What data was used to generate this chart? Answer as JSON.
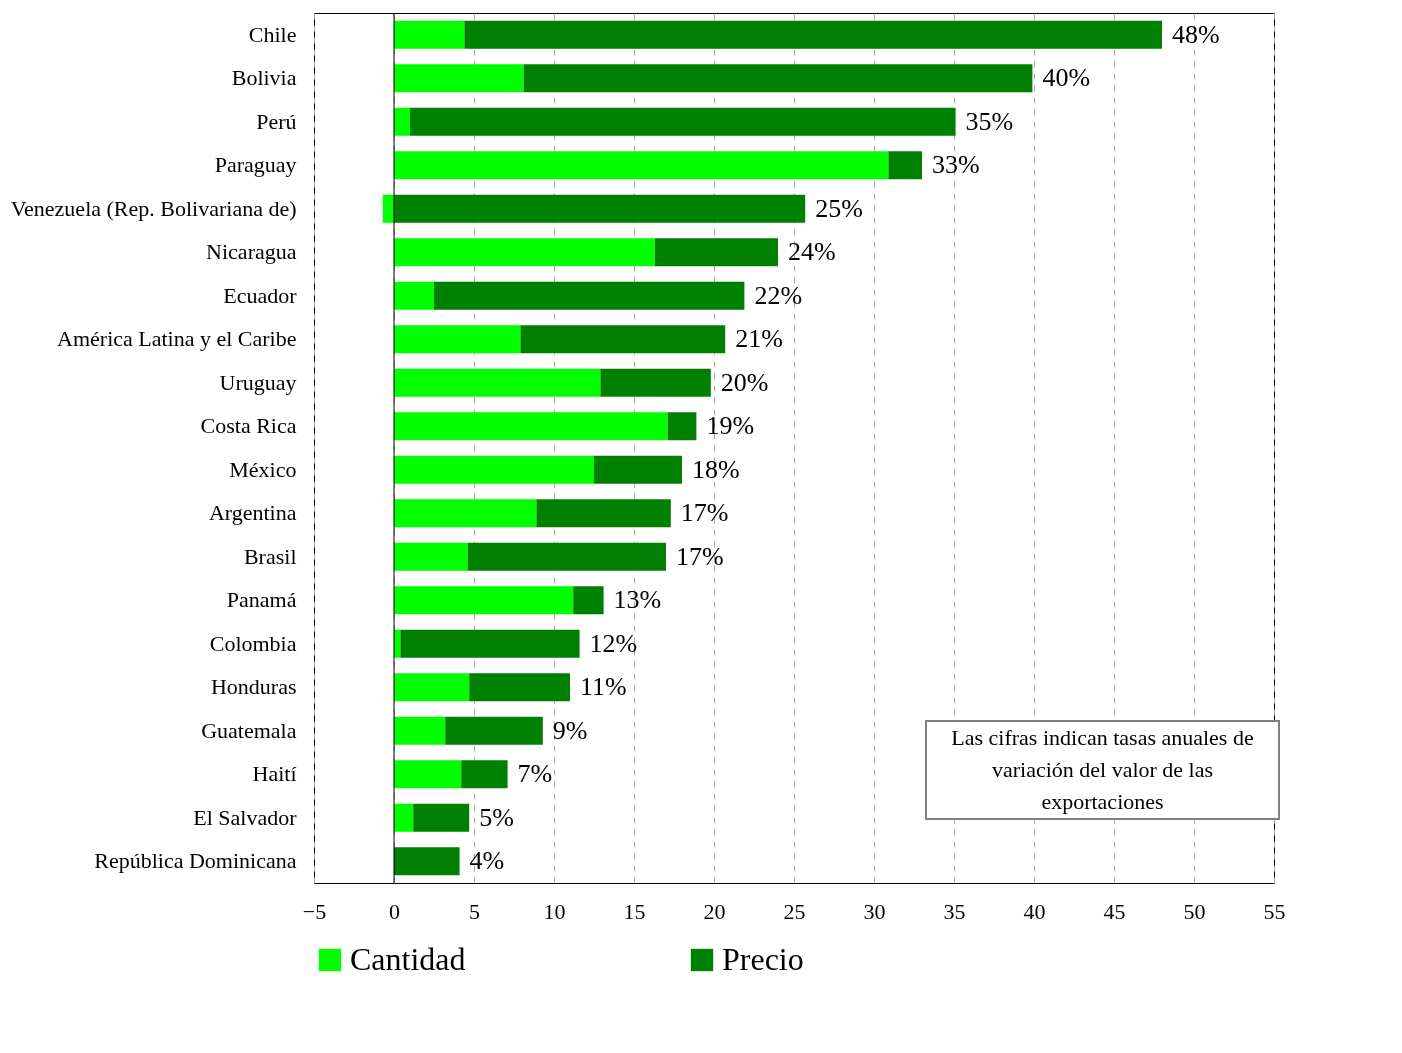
{
  "chart_data": {
    "type": "bar",
    "orientation": "horizontal",
    "stacked": true,
    "categories": [
      "Chile",
      "Bolivia",
      "Perú",
      "Paraguay",
      "Venezuela (Rep. Bolivariana de)",
      "Nicaragua",
      "Ecuador",
      "América Latina y el Caribe",
      "Uruguay",
      "Costa Rica",
      "México",
      "Argentina",
      "Brasil",
      "Panamá",
      "Colombia",
      "Honduras",
      "Guatemala",
      "Haití",
      "El Salvador",
      "República Dominicana"
    ],
    "series": [
      {
        "name": "Cantidad",
        "color": "#00ff00",
        "values": [
          4.4,
          8.1,
          1.0,
          30.9,
          -0.7,
          16.3,
          2.5,
          7.9,
          12.9,
          17.1,
          12.5,
          8.9,
          4.6,
          11.2,
          0.4,
          4.7,
          3.2,
          4.2,
          1.2,
          0
        ]
      },
      {
        "name": "Precio",
        "color": "#008000",
        "values": [
          43.6,
          31.8,
          34.1,
          2.1,
          25.7,
          7.7,
          19.4,
          12.8,
          6.9,
          1.8,
          5.5,
          8.4,
          12.4,
          1.9,
          11.2,
          6.3,
          6.1,
          2.9,
          3.5,
          4.1
        ]
      }
    ],
    "totals": [
      "48%",
      "40%",
      "35%",
      "33%",
      "25%",
      "24%",
      "22%",
      "21%",
      "20%",
      "19%",
      "18%",
      "17%",
      "17%",
      "13%",
      "12%",
      "11%",
      "9%",
      "7%",
      "5%",
      "4%"
    ],
    "xlim": [
      -5,
      55
    ],
    "xticks": [
      -5,
      0,
      5,
      10,
      15,
      20,
      25,
      30,
      35,
      40,
      45,
      50,
      55
    ],
    "ref_lines": [
      {
        "axis": "x",
        "value": 0,
        "color": "#000000"
      }
    ],
    "grid": "x",
    "legend": "bottom",
    "annotations": [
      "Las cifras indican tasas anuales de variación del valor de las exportaciones"
    ]
  }
}
